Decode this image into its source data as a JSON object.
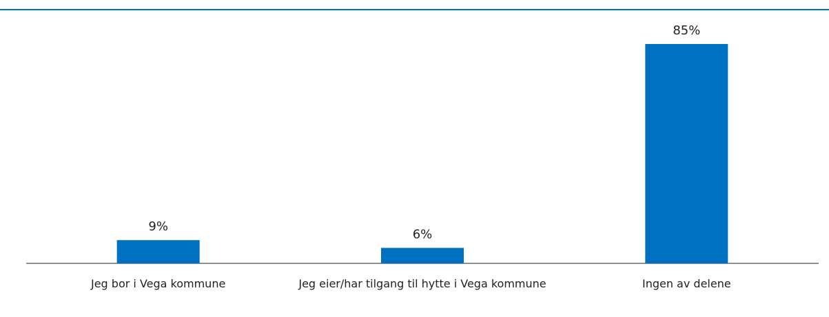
{
  "chart_data": {
    "type": "bar",
    "categories": [
      "Jeg bor i Vega kommune",
      "Jeg eier/har tilgang til hytte i Vega kommune",
      "Ingen av delene"
    ],
    "values": [
      9,
      6,
      85
    ],
    "value_labels": [
      "9%",
      "6%",
      "85%"
    ],
    "color": "#0070c0"
  }
}
